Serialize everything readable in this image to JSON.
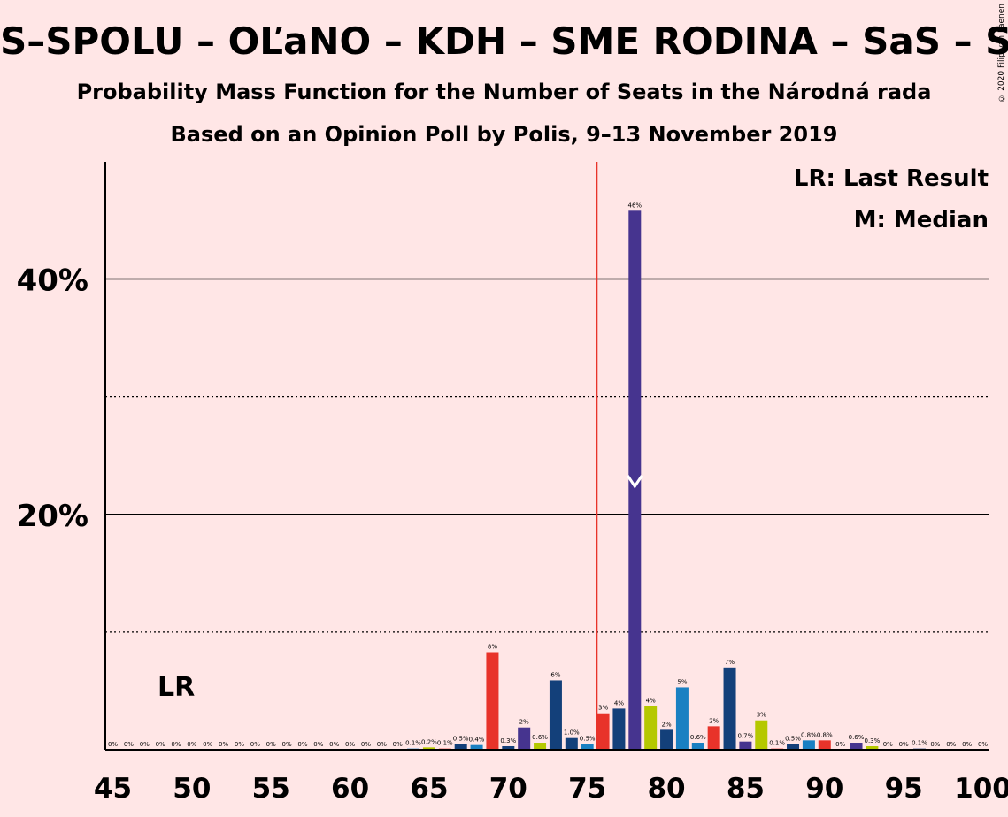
{
  "header": {
    "title": "S–SPOLU – OĽaNO – KDH – SME RODINA – SaS – SMK",
    "subtitle": "Probability Mass Function for the Number of Seats in the Národná rada",
    "source": "Based on an Opinion Poll by Polis, 9–13 November 2019",
    "copyright": "© 2020 Filip van Laenen"
  },
  "legend": {
    "lr": "LR: Last Result",
    "m": "M: Median",
    "lr_short": "LR"
  },
  "colors": {
    "background": "#ffe6e6",
    "majority_line": "#e8332a",
    "purple": "#46348f",
    "red": "#e8332a",
    "navy": "#13407a",
    "lime": "#b5c800",
    "blue": "#1a80c2"
  },
  "chart_data": {
    "type": "bar",
    "xlabel": "",
    "ylabel": "",
    "xlim": [
      45,
      100
    ],
    "ylim": [
      0,
      50
    ],
    "x_ticks": [
      45,
      50,
      55,
      60,
      65,
      70,
      75,
      80,
      85,
      90,
      95,
      100
    ],
    "y_ticks": [
      {
        "value": 20,
        "label": "20%"
      },
      {
        "value": 40,
        "label": "40%"
      }
    ],
    "dotted_gridlines": [
      10,
      30
    ],
    "majority_line": 76,
    "last_result": 48,
    "median": 78,
    "bars": [
      {
        "x": 45,
        "value": 0,
        "label": "0%",
        "color": "#46348f"
      },
      {
        "x": 46,
        "value": 0,
        "label": "0%",
        "color": "#e8332a"
      },
      {
        "x": 47,
        "value": 0,
        "label": "0%",
        "color": "#13407a"
      },
      {
        "x": 48,
        "value": 0,
        "label": "0%",
        "color": "#b5c800"
      },
      {
        "x": 49,
        "value": 0,
        "label": "0%",
        "color": "#1a80c2"
      },
      {
        "x": 50,
        "value": 0,
        "label": "0%",
        "color": "#46348f"
      },
      {
        "x": 51,
        "value": 0,
        "label": "0%",
        "color": "#e8332a"
      },
      {
        "x": 52,
        "value": 0,
        "label": "0%",
        "color": "#13407a"
      },
      {
        "x": 53,
        "value": 0,
        "label": "0%",
        "color": "#b5c800"
      },
      {
        "x": 54,
        "value": 0,
        "label": "0%",
        "color": "#1a80c2"
      },
      {
        "x": 55,
        "value": 0,
        "label": "0%",
        "color": "#46348f"
      },
      {
        "x": 56,
        "value": 0,
        "label": "0%",
        "color": "#e8332a"
      },
      {
        "x": 57,
        "value": 0,
        "label": "0%",
        "color": "#13407a"
      },
      {
        "x": 58,
        "value": 0,
        "label": "0%",
        "color": "#b5c800"
      },
      {
        "x": 59,
        "value": 0,
        "label": "0%",
        "color": "#1a80c2"
      },
      {
        "x": 60,
        "value": 0,
        "label": "0%",
        "color": "#46348f"
      },
      {
        "x": 61,
        "value": 0,
        "label": "0%",
        "color": "#e8332a"
      },
      {
        "x": 62,
        "value": 0,
        "label": "0%",
        "color": "#13407a"
      },
      {
        "x": 63,
        "value": 0,
        "label": "0%",
        "color": "#b5c800"
      },
      {
        "x": 64,
        "value": 0.1,
        "label": "0.1%",
        "color": "#1a80c2"
      },
      {
        "x": 65,
        "value": 0.2,
        "label": "0.2%",
        "color": "#b5c800"
      },
      {
        "x": 66,
        "value": 0.1,
        "label": "0.1%",
        "color": "#e8332a"
      },
      {
        "x": 67,
        "value": 0.5,
        "label": "0.5%",
        "color": "#13407a"
      },
      {
        "x": 68,
        "value": 0.4,
        "label": "0.4%",
        "color": "#1a80c2"
      },
      {
        "x": 69,
        "value": 8.3,
        "label": "8%",
        "color": "#e8332a"
      },
      {
        "x": 70,
        "value": 0.3,
        "label": "0.3%",
        "color": "#13407a"
      },
      {
        "x": 71,
        "value": 1.9,
        "label": "2%",
        "color": "#46348f"
      },
      {
        "x": 72,
        "value": 0.6,
        "label": "0.6%",
        "color": "#b5c800"
      },
      {
        "x": 73,
        "value": 5.9,
        "label": "6%",
        "color": "#13407a"
      },
      {
        "x": 74,
        "value": 1.0,
        "label": "1.0%",
        "color": "#13407a"
      },
      {
        "x": 75,
        "value": 0.5,
        "label": "0.5%",
        "color": "#1a80c2"
      },
      {
        "x": 76,
        "value": 3.1,
        "label": "3%",
        "color": "#e8332a"
      },
      {
        "x": 77,
        "value": 3.5,
        "label": "4%",
        "color": "#13407a"
      },
      {
        "x": 78,
        "value": 45.8,
        "label": "46%",
        "color": "#46348f"
      },
      {
        "x": 79,
        "value": 3.7,
        "label": "4%",
        "color": "#b5c800"
      },
      {
        "x": 80,
        "value": 1.7,
        "label": "2%",
        "color": "#13407a"
      },
      {
        "x": 81,
        "value": 5.3,
        "label": "5%",
        "color": "#1a80c2"
      },
      {
        "x": 82,
        "value": 0.6,
        "label": "0.6%",
        "color": "#1a80c2"
      },
      {
        "x": 83,
        "value": 2.0,
        "label": "2%",
        "color": "#e8332a"
      },
      {
        "x": 84,
        "value": 7.0,
        "label": "7%",
        "color": "#13407a"
      },
      {
        "x": 85,
        "value": 0.7,
        "label": "0.7%",
        "color": "#46348f"
      },
      {
        "x": 86,
        "value": 2.5,
        "label": "3%",
        "color": "#b5c800"
      },
      {
        "x": 87,
        "value": 0.1,
        "label": "0.1%",
        "color": "#e8332a"
      },
      {
        "x": 88,
        "value": 0.5,
        "label": "0.5%",
        "color": "#13407a"
      },
      {
        "x": 89,
        "value": 0.8,
        "label": "0.8%",
        "color": "#1a80c2"
      },
      {
        "x": 90,
        "value": 0.8,
        "label": "0.8%",
        "color": "#e8332a"
      },
      {
        "x": 91,
        "value": 0,
        "label": "0%",
        "color": "#13407a"
      },
      {
        "x": 92,
        "value": 0.6,
        "label": "0.6%",
        "color": "#46348f"
      },
      {
        "x": 93,
        "value": 0.3,
        "label": "0.3%",
        "color": "#b5c800"
      },
      {
        "x": 94,
        "value": 0,
        "label": "0%",
        "color": "#1a80c2"
      },
      {
        "x": 95,
        "value": 0,
        "label": "0%",
        "color": "#e8332a"
      },
      {
        "x": 96,
        "value": 0.1,
        "label": "0.1%",
        "color": "#13407a"
      },
      {
        "x": 97,
        "value": 0,
        "label": "0%",
        "color": "#46348f"
      },
      {
        "x": 98,
        "value": 0,
        "label": "0%",
        "color": "#b5c800"
      },
      {
        "x": 99,
        "value": 0,
        "label": "0%",
        "color": "#1a80c2"
      },
      {
        "x": 100,
        "value": 0,
        "label": "0%",
        "color": "#e8332a"
      }
    ]
  }
}
